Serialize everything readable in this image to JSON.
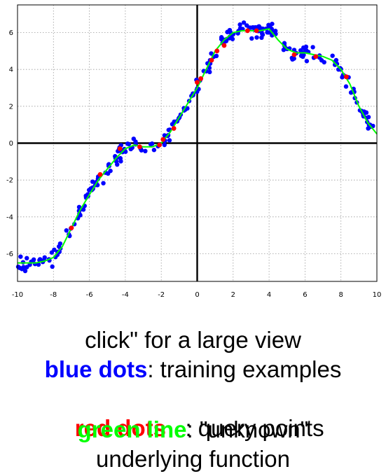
{
  "chart_data": {
    "type": "scatter",
    "xlim": [
      -10,
      10
    ],
    "ylim": [
      -7.5,
      7.5
    ],
    "xticks": [
      "-10",
      "-8",
      "-6",
      "-4",
      "-2",
      "0",
      "2",
      "4",
      "6",
      "8",
      "10"
    ],
    "yticks": [
      "-6",
      "-4",
      "-2",
      "0",
      "2",
      "4",
      "6"
    ],
    "grid": true,
    "colors": {
      "training": "#0000ff",
      "query": "#ff0000",
      "function": "#00ff00"
    },
    "function_curve": {
      "x": [
        -10,
        -9.5,
        -9,
        -8.5,
        -8,
        -7.5,
        -7,
        -6.5,
        -6,
        -5.5,
        -5,
        -4.5,
        -4,
        -3.5,
        -3,
        -2.5,
        -2,
        -1.5,
        -1,
        -0.5,
        0,
        0.5,
        1,
        1.5,
        2,
        2.5,
        3,
        3.5,
        4,
        4.5,
        5,
        5.5,
        6,
        6.5,
        7,
        7.5,
        8,
        8.5,
        9,
        9.5,
        10
      ],
      "y": [
        -6.5,
        -6.5,
        -6.5,
        -6.4,
        -6.2,
        -5.6,
        -4.6,
        -3.6,
        -2.8,
        -2.0,
        -1.4,
        -0.8,
        -0.3,
        -0.1,
        -0.2,
        -0.2,
        0.0,
        0.6,
        1.4,
        2.2,
        3.0,
        4.0,
        5.0,
        5.6,
        6.0,
        6.1,
        6.1,
        6.1,
        6.2,
        5.6,
        5.1,
        4.9,
        4.9,
        4.8,
        4.7,
        4.5,
        4.0,
        3.2,
        2.0,
        1.1,
        0.5
      ]
    },
    "query_points": {
      "x": [
        -7,
        -5.4,
        -4.3,
        -3.2,
        -2.1,
        -1.9,
        -1.3,
        0,
        0.2,
        0.8,
        1.1,
        1.5,
        2.8,
        3.3,
        5.4,
        6.6,
        8.3
      ],
      "y": [
        -4.6,
        -1.7,
        -0.3,
        -0.2,
        -0.1,
        0.2,
        0.8,
        3.3,
        3.5,
        4.5,
        5.0,
        5.3,
        6.1,
        6.1,
        4.8,
        4.7,
        3.6
      ]
    }
  },
  "caption": {
    "line1": "click\" for a large view",
    "line2_highlight": "blue dots",
    "line2_rest": ": training examples",
    "line3_highlight": "red dots",
    "line3_rest": "   : query points",
    "line4_highlight": "green line",
    "line4_rest": ": \"unknown\"",
    "line5": "underlying function"
  }
}
